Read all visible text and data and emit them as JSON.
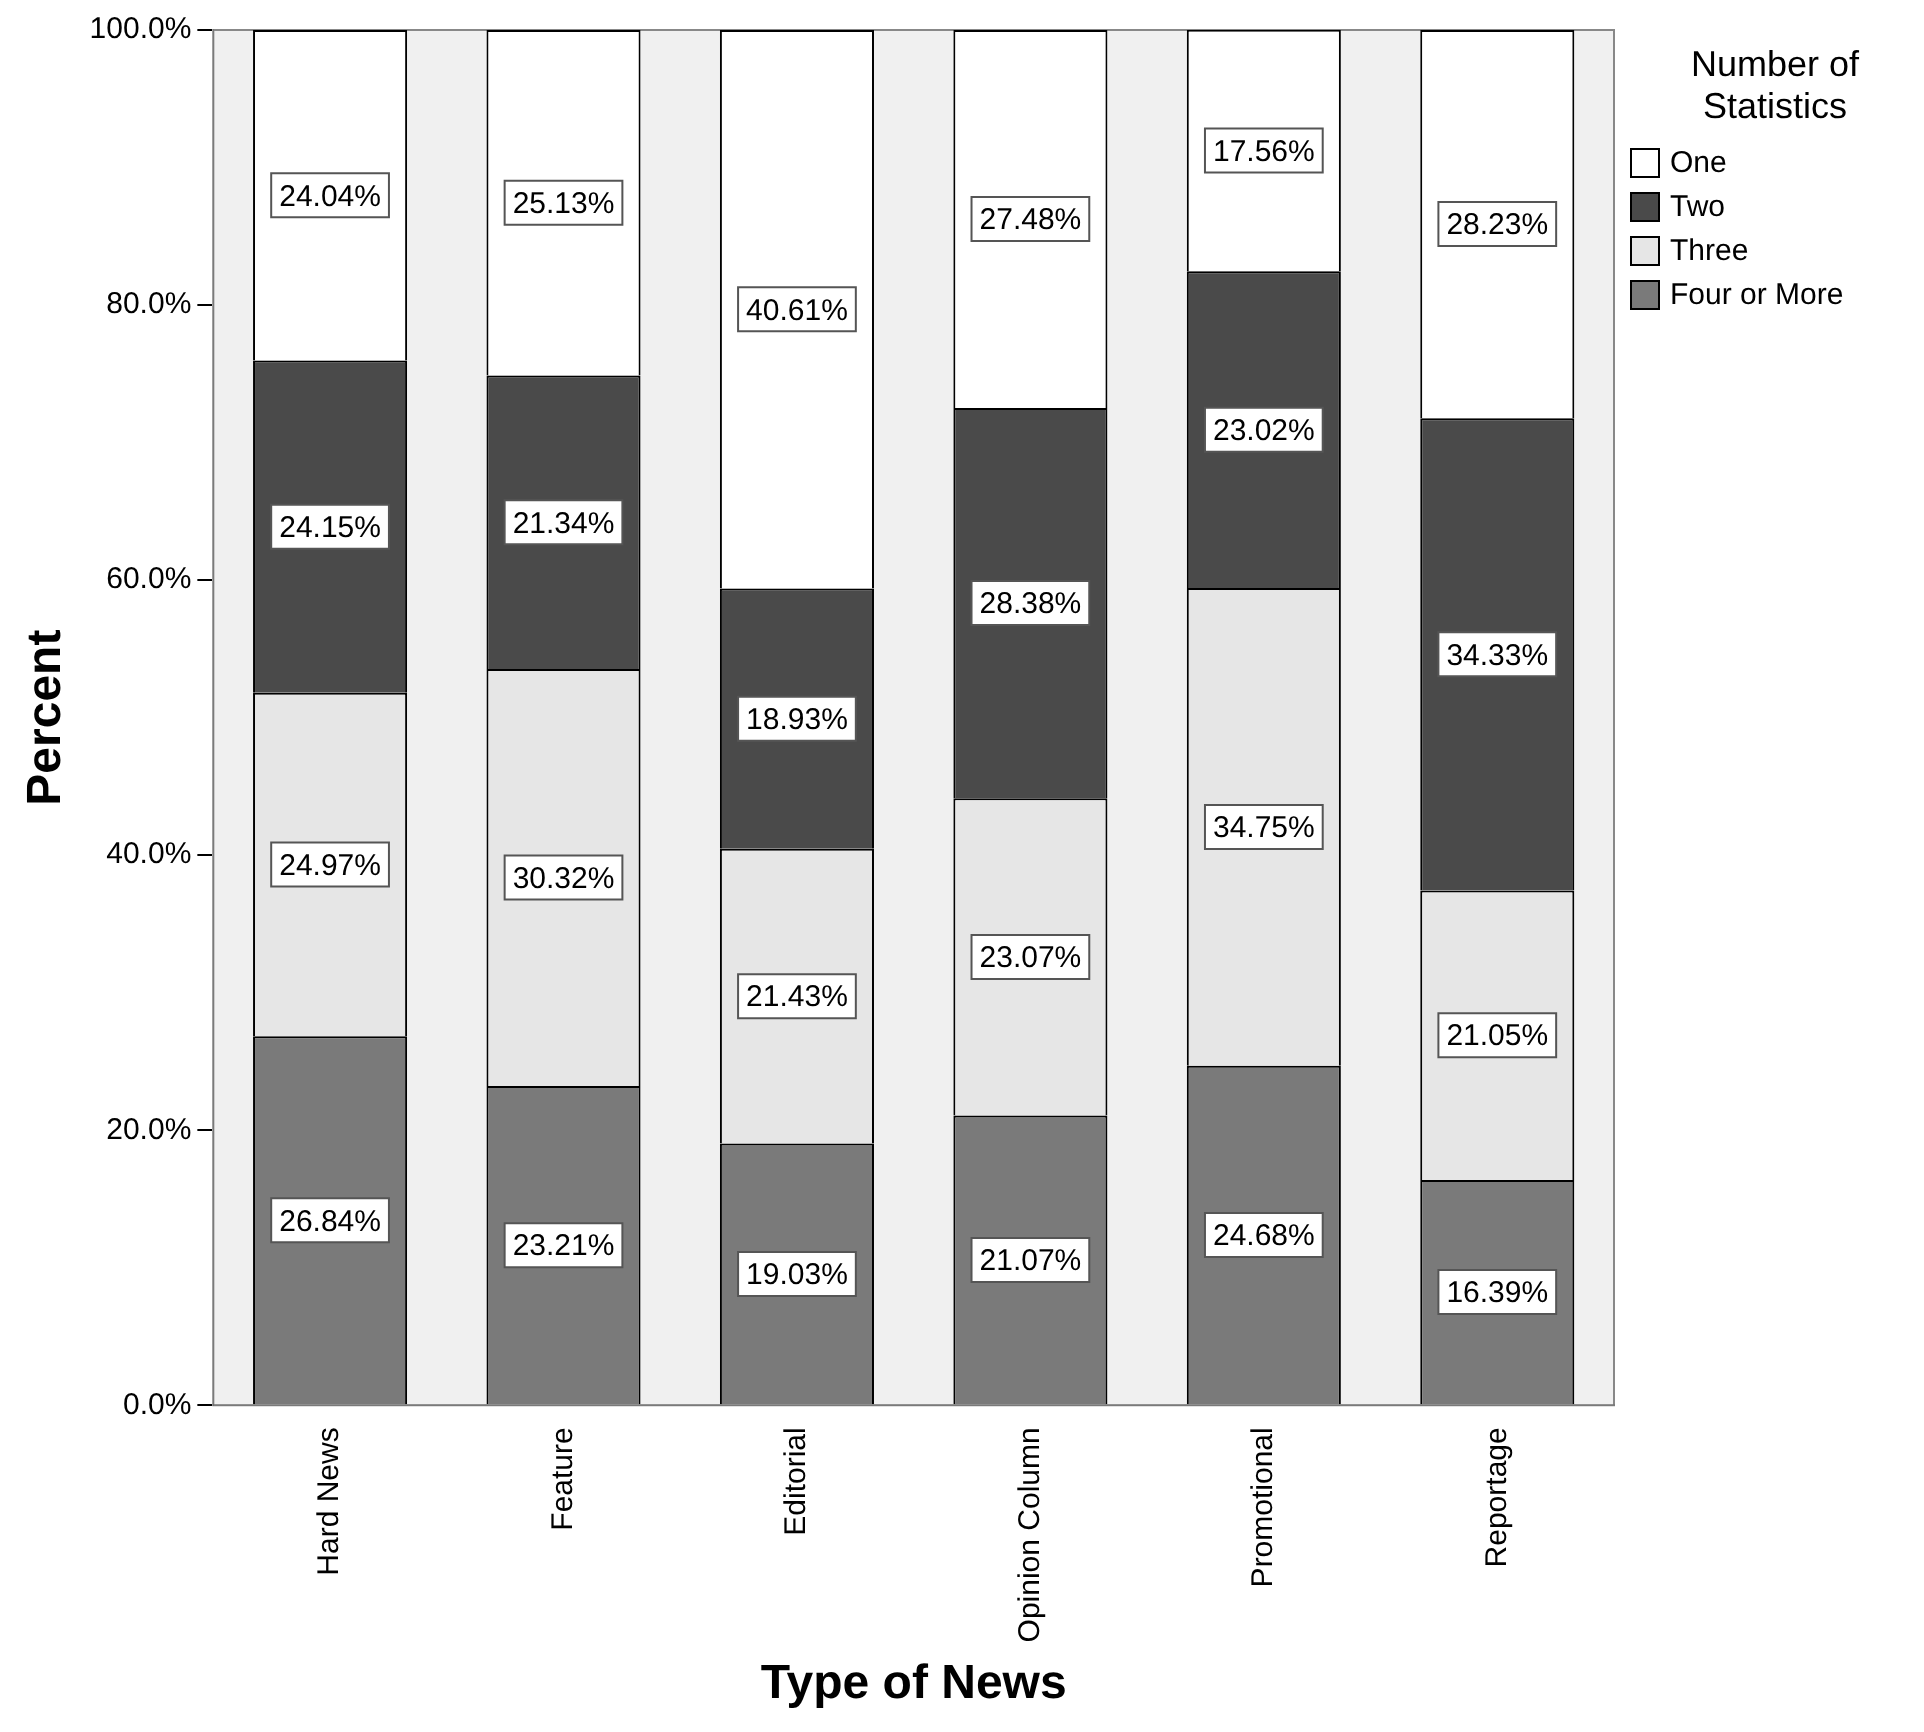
{
  "chart_data": {
    "type": "bar",
    "stacked": true,
    "xlabel": "Type of News",
    "ylabel": "Percent",
    "legend_title": "Number of Statistics",
    "legend": "top right",
    "grid": false,
    "categories": [
      "Hard News",
      "Feature",
      "Editorial",
      "Opinion Column",
      "Promotional",
      "Reportage"
    ],
    "ylim": [
      0,
      100
    ],
    "yticks": [
      {
        "value": 0,
        "label": "0.0%"
      },
      {
        "value": 20,
        "label": "20.0%"
      },
      {
        "value": 40,
        "label": "40.0%"
      },
      {
        "value": 60,
        "label": "60.0%"
      },
      {
        "value": 80,
        "label": "80.0%"
      },
      {
        "value": 100,
        "label": "100.0%"
      }
    ],
    "series": [
      {
        "name": "Four or More",
        "color": "#7a7a7a",
        "values": [
          26.84,
          23.21,
          19.03,
          21.07,
          24.68,
          16.39
        ],
        "value_labels": [
          "26.84%",
          "23.21%",
          "19.03%",
          "21.07%",
          "24.68%",
          "16.39%"
        ]
      },
      {
        "name": "Three",
        "color": "#e6e6e6",
        "values": [
          24.97,
          30.32,
          21.43,
          23.07,
          34.75,
          21.05
        ],
        "value_labels": [
          "24.97%",
          "30.32%",
          "21.43%",
          "23.07%",
          "34.75%",
          "21.05%"
        ]
      },
      {
        "name": "Two",
        "color": "#4a4a4a",
        "values": [
          24.15,
          21.34,
          18.93,
          28.38,
          23.02,
          34.33
        ],
        "value_labels": [
          "24.15%",
          "21.34%",
          "18.93%",
          "28.38%",
          "23.02%",
          "34.33%"
        ]
      },
      {
        "name": "One",
        "color": "#ffffff",
        "values": [
          24.04,
          25.13,
          40.61,
          27.48,
          17.56,
          28.23
        ],
        "value_labels": [
          "24.04%",
          "25.13%",
          "40.61%",
          "27.48%",
          "17.56%",
          "28.23%"
        ]
      }
    ]
  }
}
